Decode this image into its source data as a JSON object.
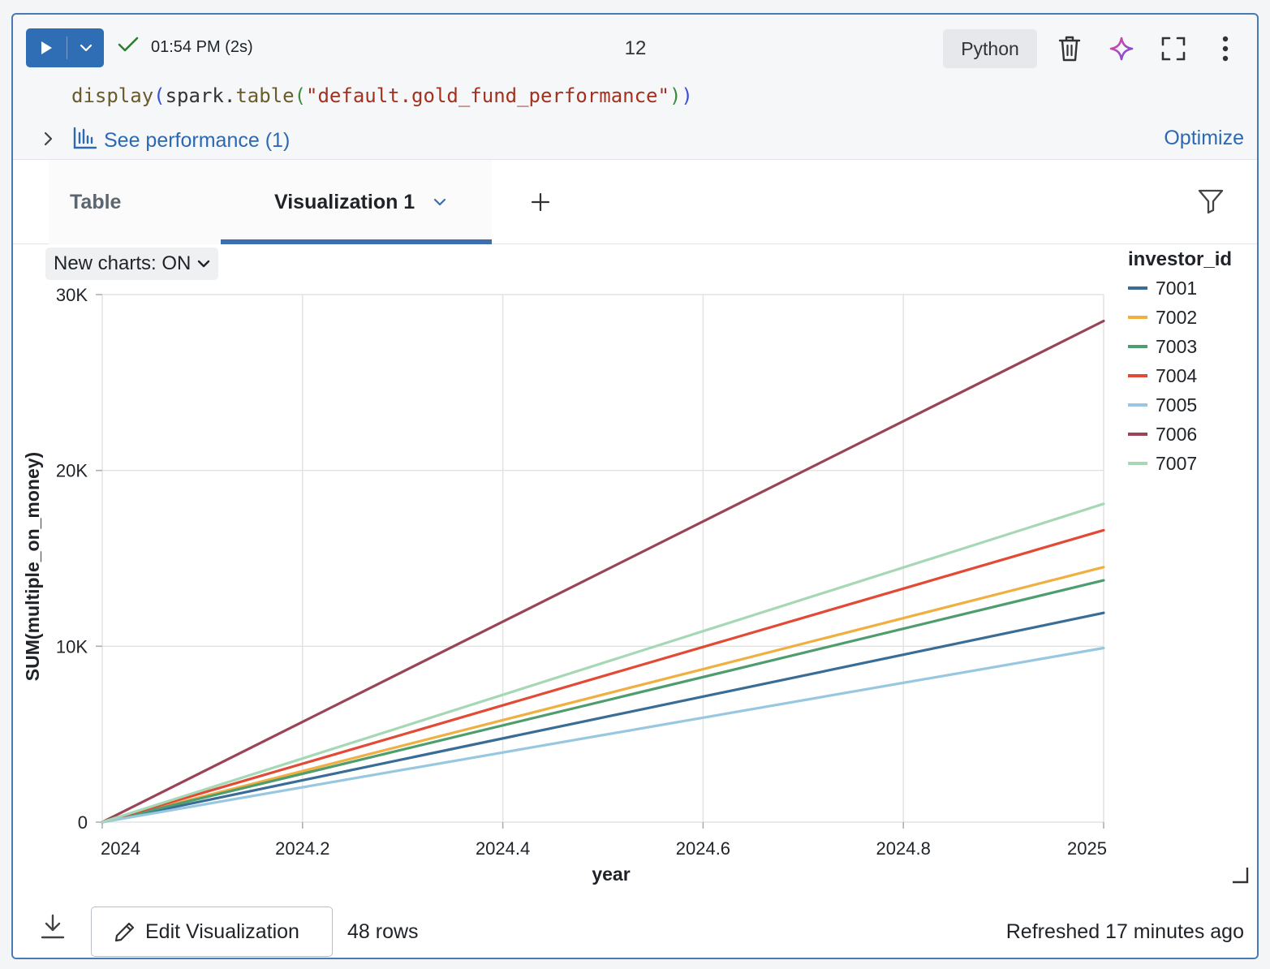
{
  "toolbar": {
    "status_time": "01:54 PM (2s)",
    "cell_number": "12",
    "language": "Python",
    "icons": [
      "play-icon",
      "chevron-down-icon",
      "check-icon",
      "trash-icon",
      "sparkle-assistant-icon",
      "fullscreen-icon",
      "more-vertical-icon"
    ]
  },
  "code": {
    "fn": "display",
    "open1": "(",
    "obj": "spark.",
    "method": "table",
    "open2": "(",
    "arg": "\"default.gold_fund_performance\"",
    "close2": ")",
    "close1": ")"
  },
  "perf": {
    "link_label": "See performance (1)",
    "optimize_label": "Optimize"
  },
  "tabs": {
    "table_label": "Table",
    "viz_label": "Visualization 1",
    "add_label": "+"
  },
  "new_charts_label": "New charts: ON",
  "footer": {
    "edit_label": "Edit Visualization",
    "rows_label": "48 rows",
    "refreshed_label": "Refreshed 17 minutes ago"
  },
  "colors": {
    "accent": "#2f6db5",
    "link": "#2c69b2",
    "check": "#2e7d32"
  },
  "chart_data": {
    "type": "line",
    "xlabel": "year",
    "ylabel": "SUM(multiple_on_money)",
    "xlim": [
      2024,
      2025
    ],
    "ylim": [
      0,
      30000
    ],
    "x_ticks": [
      2024,
      2024.2,
      2024.4,
      2024.6,
      2024.8,
      2025
    ],
    "x_tick_labels": [
      "2024",
      "2024.2",
      "2024.4",
      "2024.6",
      "2024.8",
      "2025"
    ],
    "y_ticks": [
      0,
      10000,
      20000,
      30000
    ],
    "y_tick_labels": [
      "0",
      "10K",
      "20K",
      "30K"
    ],
    "grid": true,
    "legend_title": "investor_id",
    "legend_position": "top-right",
    "series": [
      {
        "name": "7001",
        "color": "#3a6d96",
        "x": [
          2024,
          2025
        ],
        "y": [
          0,
          11900
        ]
      },
      {
        "name": "7002",
        "color": "#efb041",
        "x": [
          2024,
          2025
        ],
        "y": [
          0,
          14500
        ]
      },
      {
        "name": "7003",
        "color": "#4e9d6e",
        "x": [
          2024,
          2025
        ],
        "y": [
          0,
          13750
        ]
      },
      {
        "name": "7004",
        "color": "#e24a36",
        "x": [
          2024,
          2025
        ],
        "y": [
          0,
          16600
        ]
      },
      {
        "name": "7005",
        "color": "#98c8e0",
        "x": [
          2024,
          2025
        ],
        "y": [
          0,
          9900
        ]
      },
      {
        "name": "7006",
        "color": "#9a4458",
        "x": [
          2024,
          2025
        ],
        "y": [
          0,
          28500
        ]
      },
      {
        "name": "7007",
        "color": "#a6d8b6",
        "x": [
          2024,
          2025
        ],
        "y": [
          0,
          18100
        ]
      }
    ]
  }
}
